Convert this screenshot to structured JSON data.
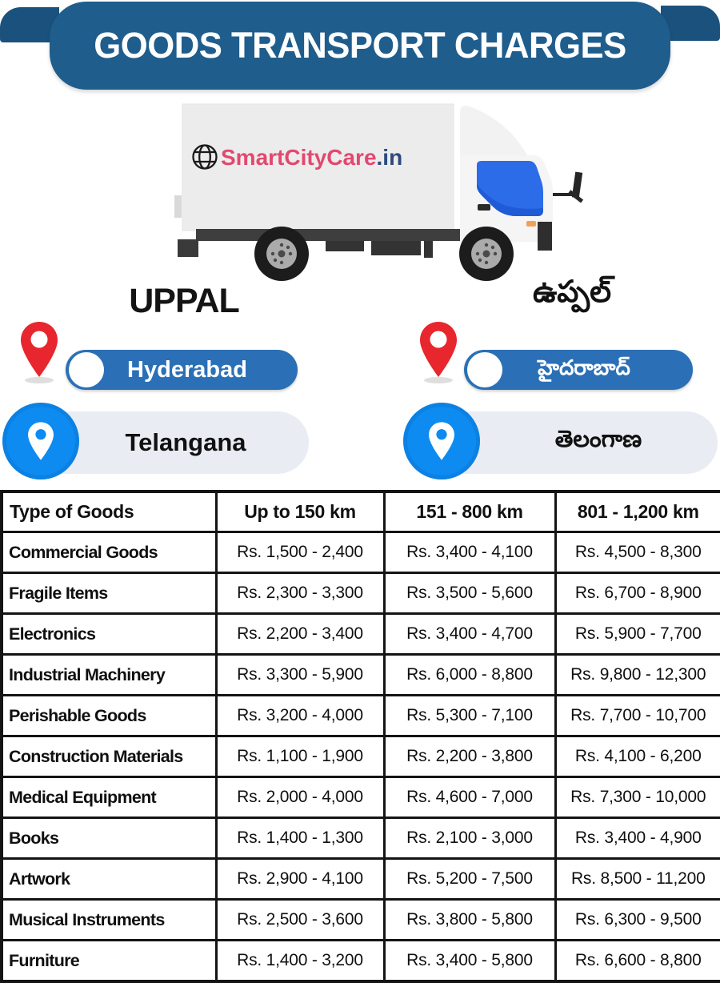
{
  "header": {
    "title": "GOODS TRANSPORT CHARGES"
  },
  "truck": {
    "brand_name": "SmartCityCare",
    "brand_tld": ".in"
  },
  "locations": {
    "area_en": "UPPAL",
    "area_te": "ఉప్పల్",
    "city_en": "Hyderabad",
    "city_te": "హైదరాబాద్",
    "state_en": "Telangana",
    "state_te": "తెలంగాణ"
  },
  "table": {
    "columns": [
      "Type of Goods",
      "Up to 150 km",
      "151 - 800 km",
      "801 - 1,200 km"
    ],
    "rows": [
      {
        "goods": "Commercial Goods",
        "prices": [
          "Rs. 1,500 - 2,400",
          "Rs. 3,400 - 4,100",
          "Rs. 4,500 - 8,300"
        ]
      },
      {
        "goods": "Fragile Items",
        "prices": [
          "Rs. 2,300 - 3,300",
          "Rs. 3,500 - 5,600",
          "Rs. 6,700 - 8,900"
        ]
      },
      {
        "goods": "Electronics",
        "prices": [
          "Rs. 2,200 - 3,400",
          "Rs. 3,400 - 4,700",
          "Rs. 5,900 - 7,700"
        ]
      },
      {
        "goods": "Industrial Machinery",
        "prices": [
          "Rs. 3,300 - 5,900",
          "Rs. 6,000 - 8,800",
          "Rs. 9,800 - 12,300"
        ]
      },
      {
        "goods": "Perishable Goods",
        "prices": [
          "Rs. 3,200 - 4,000",
          "Rs. 5,300 - 7,100",
          "Rs. 7,700 - 10,700"
        ]
      },
      {
        "goods": "Construction Materials",
        "prices": [
          "Rs. 1,100 - 1,900",
          "Rs. 2,200 - 3,800",
          "Rs. 4,100 - 6,200"
        ]
      },
      {
        "goods": "Medical Equipment",
        "prices": [
          "Rs. 2,000 - 4,000",
          "Rs. 4,600 - 7,000",
          "Rs. 7,300 - 10,000"
        ]
      },
      {
        "goods": "Books",
        "prices": [
          "Rs. 1,400 - 1,300",
          "Rs. 2,100 - 3,000",
          "Rs. 3,400 - 4,900"
        ]
      },
      {
        "goods": "Artwork",
        "prices": [
          "Rs. 2,900 - 4,100",
          "Rs. 5,200 - 7,500",
          "Rs. 8,500 - 11,200"
        ]
      },
      {
        "goods": "Musical Instruments",
        "prices": [
          "Rs. 2,500 - 3,600",
          "Rs. 3,800 - 5,800",
          "Rs. 6,300 - 9,500"
        ]
      },
      {
        "goods": "Furniture",
        "prices": [
          "Rs. 1,400 - 3,200",
          "Rs. 3,400 - 5,800",
          "Rs. 6,600 - 8,800"
        ]
      }
    ]
  },
  "colors": {
    "banner_blue": "#1F5D8C",
    "ribbon_blue": "#1A527D",
    "pill_blue": "#2B70B6",
    "circle_blue": "#0D8BF0",
    "light_pill": "#E9EDF3",
    "pin_red": "#E8262D",
    "brand_pink": "#E2486F",
    "brand_navy": "#2C4B7C",
    "table_border": "#141414"
  }
}
